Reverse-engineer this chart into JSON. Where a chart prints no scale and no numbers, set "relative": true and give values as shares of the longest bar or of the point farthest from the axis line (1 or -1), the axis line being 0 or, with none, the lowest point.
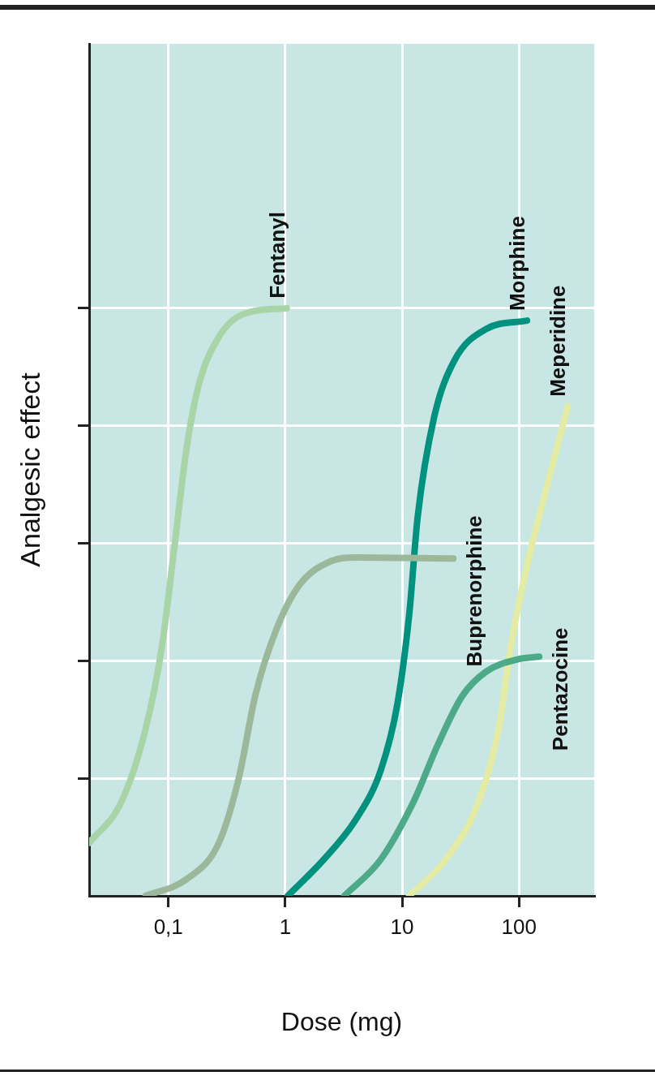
{
  "chart_data": {
    "type": "line",
    "xlabel": "Dose (mg)",
    "ylabel": "Analgesic effect",
    "relative": true,
    "log": "x",
    "grid": true,
    "legend": false,
    "xlim": [
      0.021,
      440
    ],
    "xticks": [
      {
        "value": 0.1,
        "label": "0,1"
      },
      1,
      10,
      100
    ],
    "series": [
      {
        "name": "Fentanyl",
        "color": "#a8d4a8",
        "x": [
          0.021,
          0.0396,
          0.064,
          0.088,
          0.112,
          0.142,
          0.181,
          0.27,
          0.436,
          1.03
        ],
        "values": [
          0.09,
          0.16,
          0.285,
          0.424,
          0.59,
          0.757,
          0.868,
          0.951,
          0.99,
          1.0
        ]
      },
      {
        "name": "Buprenorphine",
        "color": "#9bb89a",
        "x": [
          0.064,
          0.142,
          0.27,
          0.4,
          0.553,
          0.826,
          1.31,
          2.49,
          4.0,
          27.4
        ],
        "values": [
          0,
          0.028,
          0.09,
          0.2,
          0.34,
          0.45,
          0.528,
          0.57,
          0.576,
          0.574
        ]
      },
      {
        "name": "Morphine",
        "color": "#00927e",
        "x": [
          1.05,
          2.15,
          4.08,
          6.6,
          9.1,
          11.5,
          13.6,
          18.7,
          27.8,
          52.7,
          117
        ],
        "values": [
          0,
          0.0625,
          0.132,
          0.215,
          0.326,
          0.479,
          0.646,
          0.813,
          0.91,
          0.965,
          0.979
        ]
      },
      {
        "name": "Pentazocine",
        "color": "#4daa88",
        "x": [
          3.2,
          6.6,
          12.5,
          20.2,
          32.7,
          52.7,
          100,
          149
        ],
        "values": [
          0,
          0.0625,
          0.16,
          0.257,
          0.34,
          0.382,
          0.403,
          0.407
        ]
      },
      {
        "name": "Meperidine",
        "color": "#e4eba4",
        "x": [
          11.5,
          23.7,
          45,
          67,
          85,
          117,
          175,
          261
        ],
        "values": [
          0,
          0.0625,
          0.16,
          0.285,
          0.424,
          0.5625,
          0.701,
          0.833
        ]
      }
    ]
  }
}
